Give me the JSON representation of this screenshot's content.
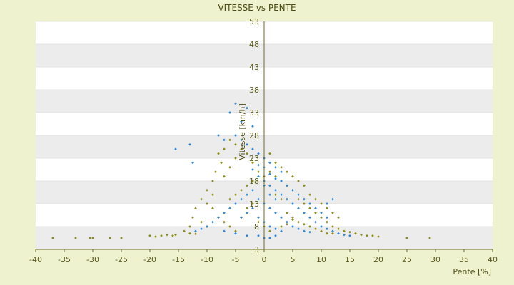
{
  "chart_data": {
    "type": "scatter",
    "title": "VITESSE vs PENTE",
    "xlabel": "Pente [%]",
    "ylabel": "Vitesse [km/h]",
    "xlim": [
      -40,
      40
    ],
    "ylim": [
      3,
      53
    ],
    "x_ticks": [
      "-40",
      "-35",
      "-30",
      "-25",
      "-20",
      "-15",
      "-10",
      "-5",
      "0",
      "5",
      "10",
      "15",
      "20",
      "25",
      "30",
      "35",
      "40"
    ],
    "y_ticks": [
      "3",
      "8",
      "13",
      "18",
      "23",
      "28",
      "33",
      "38",
      "43",
      "48",
      "53"
    ],
    "grid": true,
    "legend": "none",
    "series": [
      {
        "color": "#8b8b1a",
        "points": [
          [
            -37,
            5.5
          ],
          [
            -33,
            5.5
          ],
          [
            -30.5,
            5.5
          ],
          [
            -30,
            5.5
          ],
          [
            -27,
            5.5
          ],
          [
            -25,
            5.5
          ],
          [
            -20,
            6
          ],
          [
            -19,
            5.8
          ],
          [
            -18,
            6
          ],
          [
            -17,
            6.2
          ],
          [
            -16,
            6
          ],
          [
            -15.5,
            6.2
          ],
          [
            -13,
            6.5
          ],
          [
            -12,
            6.4
          ],
          [
            -12.5,
            10
          ],
          [
            -12,
            12
          ],
          [
            -11,
            14
          ],
          [
            -10,
            16
          ],
          [
            -9,
            18
          ],
          [
            -8.5,
            20
          ],
          [
            -8,
            24
          ],
          [
            -7.5,
            22
          ],
          [
            -7,
            25
          ],
          [
            -6,
            27
          ],
          [
            -5,
            26
          ],
          [
            -4,
            25
          ],
          [
            -3,
            24
          ],
          [
            -2,
            22
          ],
          [
            -1,
            20
          ],
          [
            0,
            19
          ],
          [
            1,
            20
          ],
          [
            2,
            19
          ],
          [
            3,
            18
          ],
          [
            4,
            17
          ],
          [
            5,
            16
          ],
          [
            6,
            14
          ],
          [
            7,
            13
          ],
          [
            8,
            12
          ],
          [
            9,
            11
          ],
          [
            10,
            10
          ],
          [
            11,
            9
          ],
          [
            12,
            8
          ],
          [
            13,
            7.5
          ],
          [
            14,
            7
          ],
          [
            15,
            6.8
          ],
          [
            16,
            6.5
          ],
          [
            17,
            6.2
          ],
          [
            18,
            6
          ],
          [
            19,
            6
          ],
          [
            20,
            5.8
          ],
          [
            25,
            5.5
          ],
          [
            29,
            5.5
          ],
          [
            -6,
            14
          ],
          [
            -5,
            15
          ],
          [
            -4,
            16
          ],
          [
            -3,
            17
          ],
          [
            -2,
            18
          ],
          [
            -8,
            10
          ],
          [
            -7,
            9
          ],
          [
            -6,
            8
          ],
          [
            -5,
            7
          ],
          [
            -10,
            8
          ],
          [
            -11,
            9
          ],
          [
            -9,
            12
          ],
          [
            -4,
            10
          ],
          [
            -3,
            12
          ],
          [
            -2,
            13
          ],
          [
            4,
            11
          ],
          [
            5,
            10
          ],
          [
            6,
            9
          ],
          [
            7,
            8.5
          ],
          [
            8,
            8
          ],
          [
            9,
            7.5
          ],
          [
            10,
            7
          ],
          [
            11,
            6.5
          ],
          [
            12,
            6.5
          ],
          [
            3,
            14
          ],
          [
            2,
            15
          ],
          [
            6,
            18
          ],
          [
            7,
            17
          ],
          [
            8,
            15
          ],
          [
            9,
            14
          ],
          [
            10,
            13
          ],
          [
            11,
            12
          ],
          [
            12,
            11
          ],
          [
            13,
            10
          ],
          [
            -14,
            7
          ],
          [
            -13,
            8
          ],
          [
            -1,
            9
          ],
          [
            0,
            8
          ],
          [
            1,
            7
          ],
          [
            2,
            7.5
          ],
          [
            3,
            8
          ],
          [
            4,
            8.5
          ],
          [
            5,
            9.5
          ],
          [
            -7,
            19
          ],
          [
            -6,
            21
          ],
          [
            -5,
            23
          ],
          [
            -9,
            15
          ],
          [
            -10,
            13
          ],
          [
            1,
            24
          ],
          [
            2,
            22
          ],
          [
            3,
            21
          ],
          [
            4,
            20
          ],
          [
            5,
            19
          ]
        ]
      },
      {
        "color": "#2e86d6",
        "points": [
          [
            -15.5,
            25
          ],
          [
            -13,
            26
          ],
          [
            -12.5,
            22
          ],
          [
            -5,
            35
          ],
          [
            -6,
            33
          ],
          [
            -3,
            34
          ],
          [
            -4,
            31
          ],
          [
            -2,
            30
          ],
          [
            -8,
            28
          ],
          [
            -7,
            27
          ],
          [
            -5,
            28
          ],
          [
            -4,
            27
          ],
          [
            -3,
            26
          ],
          [
            -2,
            25
          ],
          [
            -1,
            24
          ],
          [
            0,
            23
          ],
          [
            1,
            22
          ],
          [
            2,
            21
          ],
          [
            3,
            20
          ],
          [
            -1,
            19
          ],
          [
            0,
            18
          ],
          [
            1,
            17
          ],
          [
            2,
            16
          ],
          [
            3,
            15
          ],
          [
            4,
            14
          ],
          [
            5,
            13
          ],
          [
            6,
            12
          ],
          [
            7,
            11
          ],
          [
            8,
            10
          ],
          [
            9,
            9
          ],
          [
            10,
            8
          ],
          [
            11,
            7.5
          ],
          [
            12,
            7
          ],
          [
            13,
            6.5
          ],
          [
            14,
            6.2
          ],
          [
            15,
            6
          ],
          [
            -2,
            16
          ],
          [
            -3,
            15
          ],
          [
            -4,
            14
          ],
          [
            -5,
            13
          ],
          [
            -6,
            12
          ],
          [
            -7,
            11
          ],
          [
            -8,
            10
          ],
          [
            -9,
            9
          ],
          [
            -10,
            8
          ],
          [
            -11,
            7.5
          ],
          [
            -12,
            7
          ],
          [
            -1,
            14
          ],
          [
            0,
            13
          ],
          [
            1,
            12
          ],
          [
            2,
            11
          ],
          [
            3,
            10
          ],
          [
            4,
            9
          ],
          [
            5,
            8
          ],
          [
            6,
            7.5
          ],
          [
            7,
            7
          ],
          [
            8,
            6.8
          ],
          [
            -1,
            10
          ],
          [
            0,
            9
          ],
          [
            1,
            8
          ],
          [
            2,
            7.5
          ],
          [
            3,
            7
          ],
          [
            -1,
            6
          ],
          [
            0,
            5.5
          ],
          [
            1,
            5.5
          ],
          [
            2,
            6
          ],
          [
            -3,
            6
          ],
          [
            -5,
            6.5
          ],
          [
            -7,
            7
          ],
          [
            0,
            21
          ],
          [
            1,
            19.5
          ],
          [
            2,
            18.5
          ],
          [
            -2,
            20.5
          ],
          [
            -1,
            21.5
          ],
          [
            0,
            17
          ],
          [
            1,
            15
          ],
          [
            2,
            14
          ],
          [
            -2,
            12
          ],
          [
            -3,
            11
          ],
          [
            -4,
            10
          ],
          [
            10,
            11
          ],
          [
            11,
            10
          ],
          [
            12,
            14
          ],
          [
            11,
            13
          ],
          [
            9,
            12
          ],
          [
            8,
            13
          ],
          [
            7,
            14
          ],
          [
            6,
            15
          ],
          [
            5,
            16
          ],
          [
            4,
            17
          ],
          [
            3,
            18
          ]
        ]
      }
    ]
  }
}
